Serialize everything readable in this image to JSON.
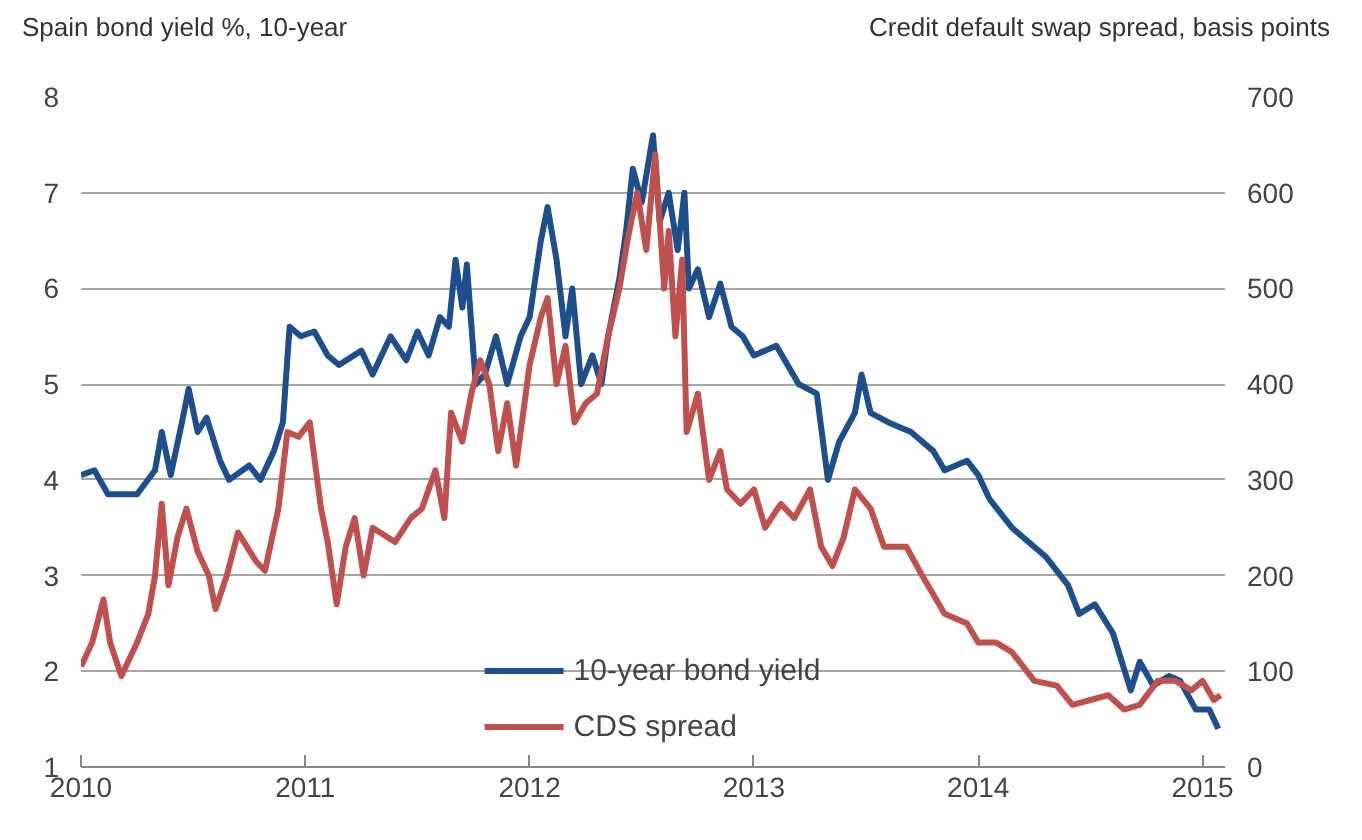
{
  "chart_data": {
    "type": "line",
    "ylabel": "Spain bond yield %, 10-year",
    "y2label": "Credit default swap spread, basis points",
    "xlim": [
      2010,
      2015.1
    ],
    "xticks": [
      2010,
      2011,
      2012,
      2013,
      2014,
      2015
    ],
    "ylim": [
      1,
      8
    ],
    "yticks": [
      1,
      2,
      3,
      4,
      5,
      6,
      7,
      8
    ],
    "y2lim": [
      0,
      700
    ],
    "y2ticks": [
      0,
      100,
      200,
      300,
      400,
      500,
      600,
      700
    ],
    "grid": "y",
    "legend": "bottom",
    "series": [
      {
        "name": "10-year bond yield",
        "color": "#1f4e8c",
        "x": [
          2010.0,
          2010.06,
          2010.12,
          2010.25,
          2010.33,
          2010.36,
          2010.4,
          2010.45,
          2010.48,
          2010.52,
          2010.56,
          2010.62,
          2010.66,
          2010.75,
          2010.8,
          2010.86,
          2010.9,
          2010.93,
          2010.98,
          2011.04,
          2011.1,
          2011.15,
          2011.25,
          2011.3,
          2011.38,
          2011.45,
          2011.5,
          2011.55,
          2011.6,
          2011.64,
          2011.67,
          2011.7,
          2011.72,
          2011.76,
          2011.8,
          2011.85,
          2011.9,
          2011.96,
          2012.0,
          2012.05,
          2012.08,
          2012.12,
          2012.16,
          2012.19,
          2012.23,
          2012.28,
          2012.32,
          2012.35,
          2012.4,
          2012.43,
          2012.46,
          2012.5,
          2012.55,
          2012.58,
          2012.62,
          2012.66,
          2012.69,
          2012.71,
          2012.75,
          2012.8,
          2012.85,
          2012.9,
          2012.95,
          2013.0,
          2013.1,
          2013.2,
          2013.28,
          2013.33,
          2013.38,
          2013.45,
          2013.48,
          2013.52,
          2013.6,
          2013.7,
          2013.8,
          2013.85,
          2013.95,
          2014.0,
          2014.05,
          2014.15,
          2014.3,
          2014.4,
          2014.45,
          2014.52,
          2014.6,
          2014.68,
          2014.72,
          2014.78,
          2014.85,
          2014.9,
          2014.97,
          2015.03,
          2015.07
        ],
        "values": [
          4.05,
          4.1,
          3.85,
          3.85,
          4.1,
          4.5,
          4.05,
          4.6,
          4.95,
          4.5,
          4.65,
          4.2,
          4.0,
          4.15,
          4.0,
          4.3,
          4.6,
          5.6,
          5.5,
          5.55,
          5.3,
          5.2,
          5.35,
          5.1,
          5.5,
          5.25,
          5.55,
          5.3,
          5.7,
          5.6,
          6.3,
          5.8,
          6.25,
          5.0,
          5.1,
          5.5,
          5.0,
          5.5,
          5.7,
          6.5,
          6.85,
          6.3,
          5.5,
          6.0,
          5.0,
          5.3,
          5.0,
          5.5,
          6.1,
          6.6,
          7.25,
          6.9,
          7.6,
          6.7,
          7.0,
          6.4,
          7.0,
          6.0,
          6.2,
          5.7,
          6.05,
          5.6,
          5.5,
          5.3,
          5.4,
          5.0,
          4.9,
          4.0,
          4.4,
          4.7,
          5.1,
          4.7,
          4.6,
          4.5,
          4.3,
          4.1,
          4.2,
          4.05,
          3.8,
          3.5,
          3.2,
          2.9,
          2.6,
          2.7,
          2.4,
          1.8,
          2.1,
          1.85,
          1.95,
          1.9,
          1.6,
          1.6,
          1.4
        ]
      },
      {
        "name": "CDS spread",
        "color": "#c0504d",
        "axis": "y2",
        "x": [
          2010.0,
          2010.05,
          2010.1,
          2010.13,
          2010.18,
          2010.25,
          2010.3,
          2010.33,
          2010.36,
          2010.39,
          2010.43,
          2010.47,
          2010.52,
          2010.57,
          2010.6,
          2010.65,
          2010.7,
          2010.78,
          2010.82,
          2010.88,
          2010.92,
          2010.97,
          2011.02,
          2011.07,
          2011.1,
          2011.14,
          2011.18,
          2011.22,
          2011.26,
          2011.3,
          2011.4,
          2011.47,
          2011.52,
          2011.58,
          2011.62,
          2011.65,
          2011.7,
          2011.74,
          2011.78,
          2011.82,
          2011.86,
          2011.9,
          2011.94,
          2012.0,
          2012.05,
          2012.08,
          2012.12,
          2012.16,
          2012.2,
          2012.25,
          2012.3,
          2012.35,
          2012.4,
          2012.44,
          2012.48,
          2012.52,
          2012.56,
          2012.6,
          2012.62,
          2012.65,
          2012.68,
          2012.7,
          2012.75,
          2012.8,
          2012.85,
          2012.88,
          2012.94,
          2013.0,
          2013.05,
          2013.12,
          2013.18,
          2013.25,
          2013.3,
          2013.35,
          2013.4,
          2013.45,
          2013.52,
          2013.58,
          2013.68,
          2013.75,
          2013.85,
          2013.95,
          2014.0,
          2014.08,
          2014.15,
          2014.25,
          2014.35,
          2014.42,
          2014.5,
          2014.58,
          2014.65,
          2014.72,
          2014.8,
          2014.88,
          2014.95,
          2015.0,
          2015.05,
          2015.08
        ],
        "values": [
          105,
          130,
          175,
          130,
          95,
          130,
          160,
          200,
          275,
          190,
          240,
          270,
          225,
          200,
          165,
          200,
          245,
          215,
          205,
          270,
          350,
          345,
          360,
          270,
          235,
          170,
          230,
          260,
          200,
          250,
          235,
          260,
          270,
          310,
          260,
          370,
          340,
          390,
          425,
          400,
          330,
          380,
          315,
          420,
          470,
          490,
          400,
          440,
          360,
          380,
          390,
          450,
          500,
          555,
          600,
          540,
          640,
          500,
          560,
          450,
          530,
          350,
          390,
          300,
          330,
          290,
          275,
          290,
          250,
          275,
          260,
          290,
          230,
          210,
          240,
          290,
          270,
          230,
          230,
          200,
          160,
          150,
          130,
          130,
          120,
          90,
          85,
          65,
          70,
          75,
          60,
          65,
          90,
          90,
          80,
          90,
          70,
          75
        ]
      }
    ]
  }
}
